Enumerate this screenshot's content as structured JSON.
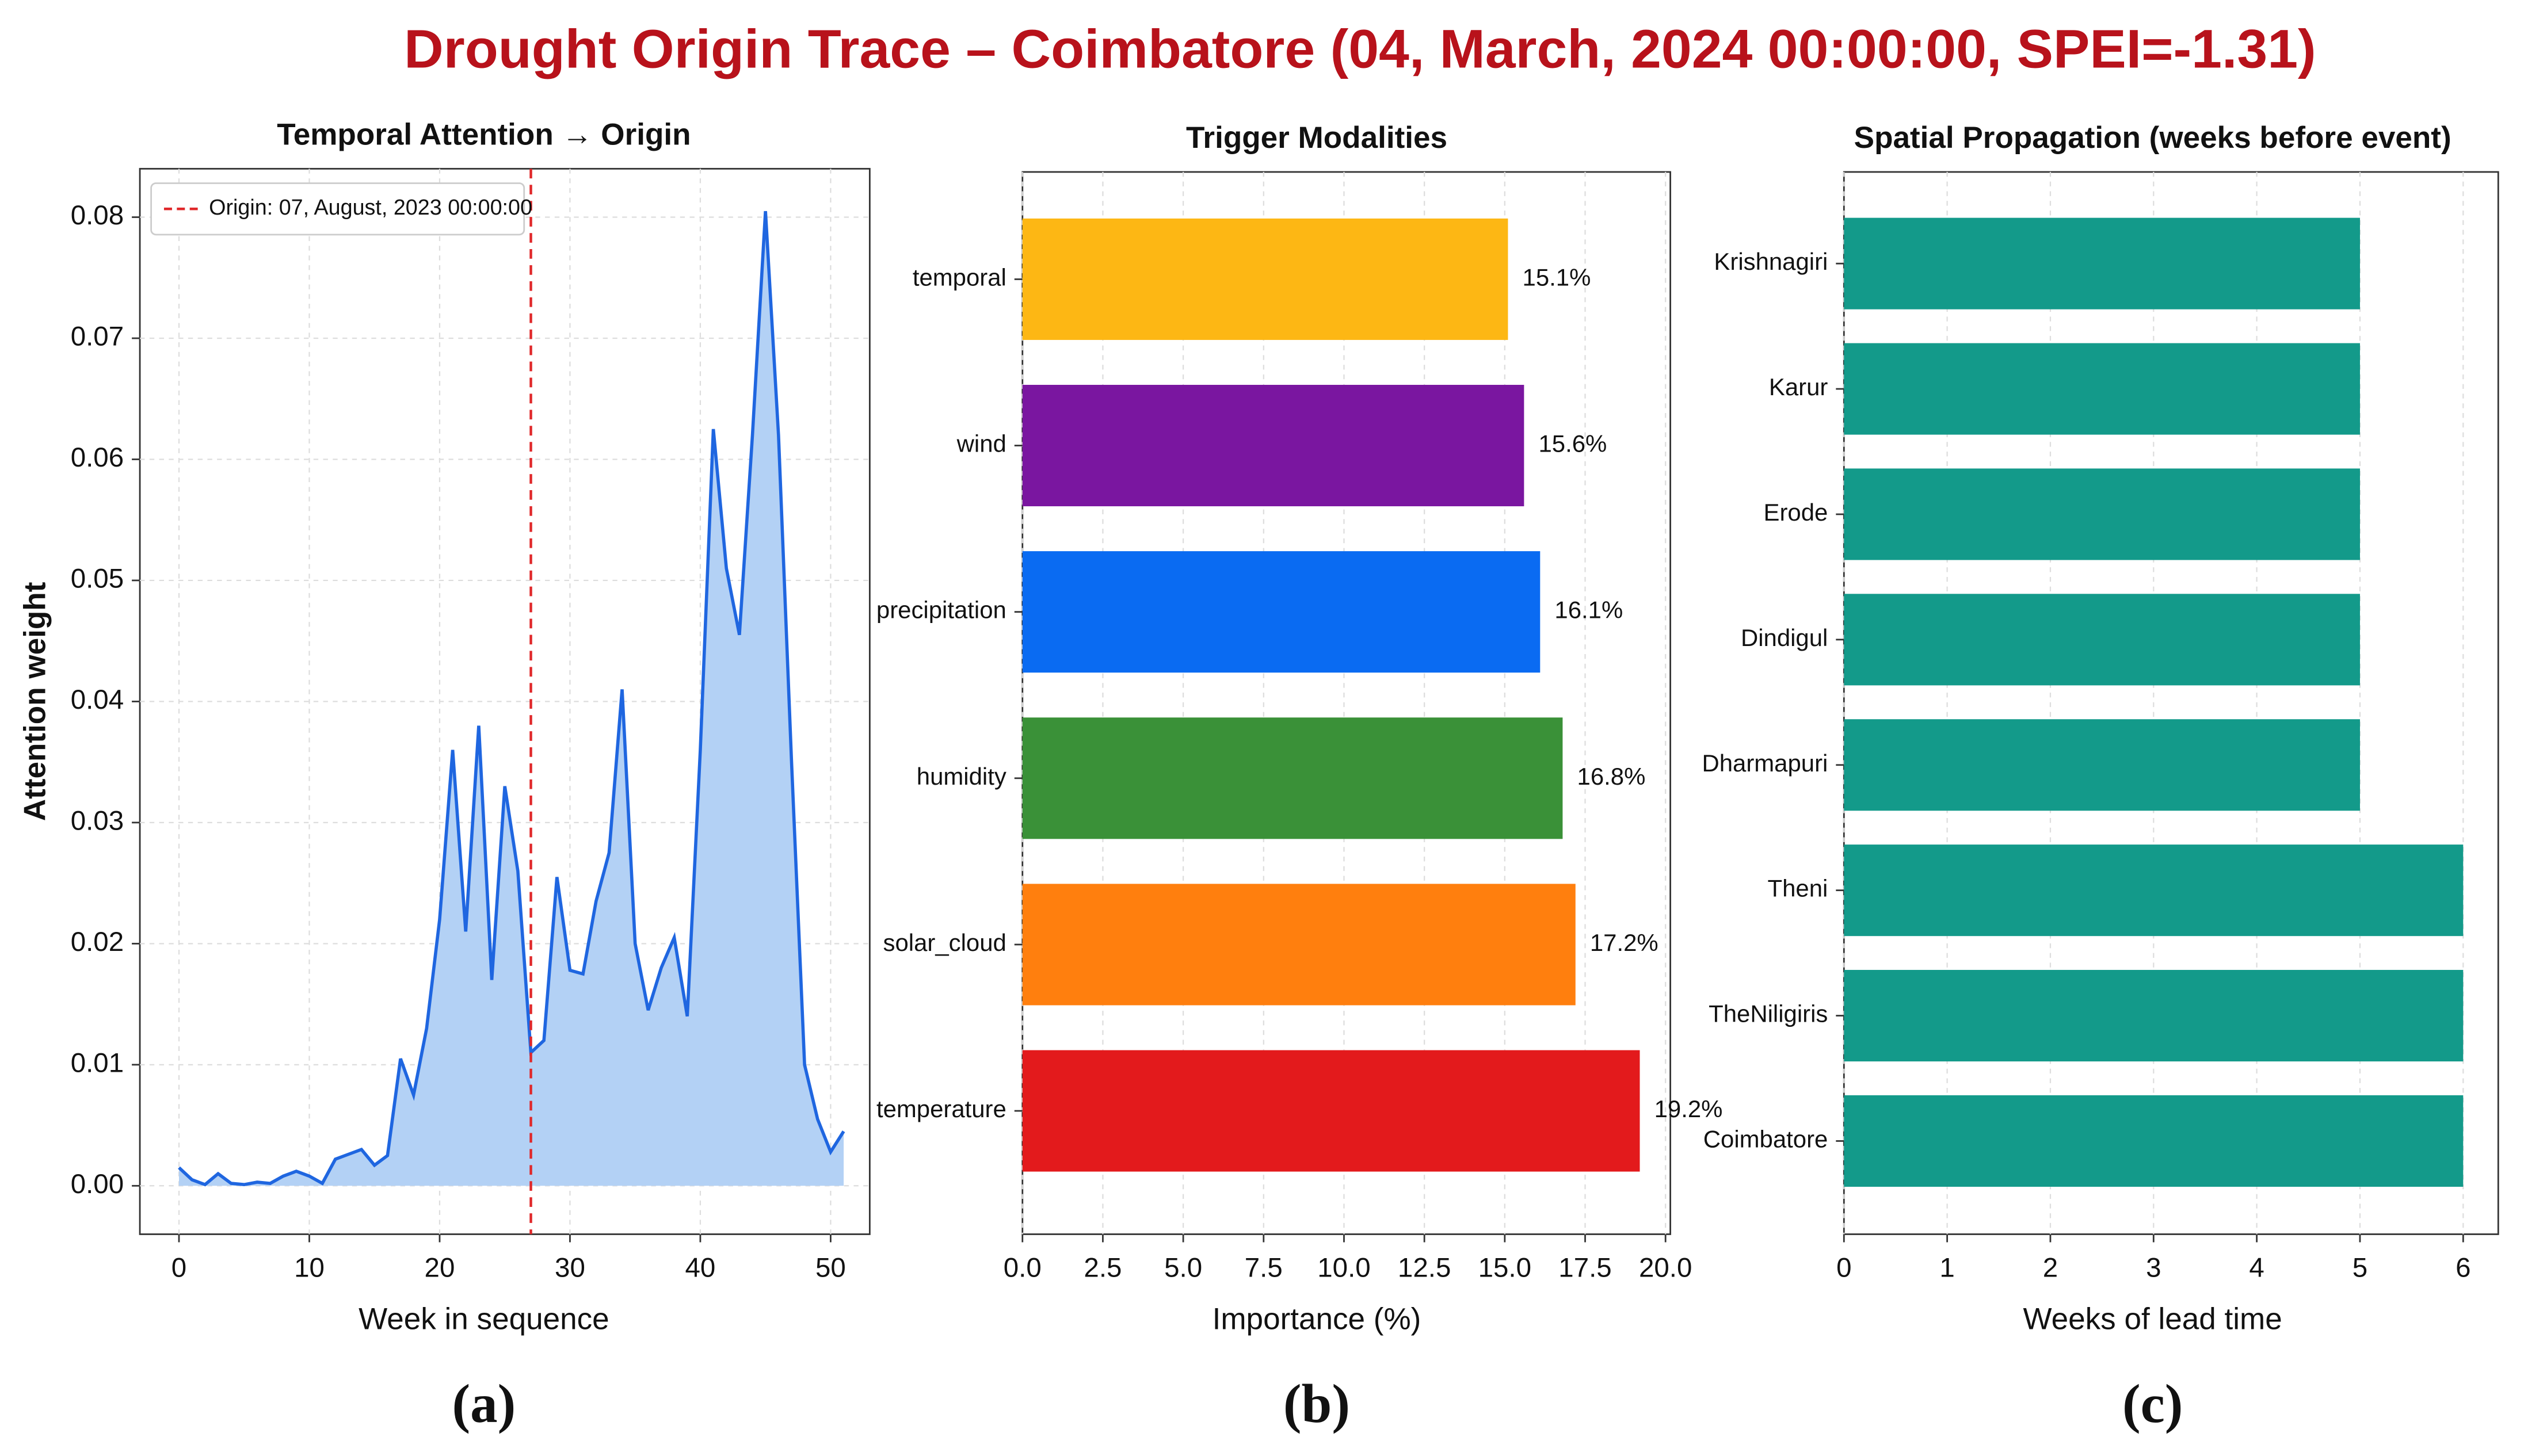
{
  "title": "Drought Origin Trace – Coimbatore (04, March, 2024 00:00:00, SPEI=-1.31)",
  "chart_data": [
    {
      "type": "line",
      "title": "Temporal Attention → Origin",
      "panel_label": "(a)",
      "xlabel": "Week in sequence",
      "ylabel": "Attention weight",
      "x": [
        0,
        1,
        2,
        3,
        4,
        5,
        6,
        7,
        8,
        9,
        10,
        11,
        12,
        13,
        14,
        15,
        16,
        17,
        18,
        19,
        20,
        21,
        22,
        23,
        24,
        25,
        26,
        27,
        28,
        29,
        30,
        31,
        32,
        33,
        34,
        35,
        36,
        37,
        38,
        39,
        40,
        41,
        42,
        43,
        44,
        45,
        46,
        47,
        48,
        49,
        50,
        51
      ],
      "series": [
        {
          "name": "Attention weight",
          "color": "#1f66e0",
          "fill": "#b3d1f5",
          "values": [
            0.0015,
            0.0005,
            0.0001,
            0.001,
            0.0002,
            0.0001,
            0.0003,
            0.0002,
            0.0008,
            0.0012,
            0.0008,
            0.0002,
            0.0022,
            0.0026,
            0.003,
            0.0017,
            0.0025,
            0.0105,
            0.0075,
            0.013,
            0.022,
            0.036,
            0.021,
            0.038,
            0.017,
            0.033,
            0.026,
            0.011,
            0.012,
            0.0255,
            0.0178,
            0.0175,
            0.0235,
            0.0275,
            0.041,
            0.02,
            0.0145,
            0.018,
            0.0205,
            0.014,
            0.036,
            0.0625,
            0.051,
            0.0455,
            0.062,
            0.0805,
            0.062,
            0.035,
            0.01,
            0.0055,
            0.0028,
            0.0045
          ]
        }
      ],
      "vline": {
        "x": 27,
        "label": "Origin: 07, August, 2023 00:00:00",
        "color": "#e0282a"
      },
      "xlim": [
        -3,
        53
      ],
      "xticks": [
        0,
        10,
        20,
        30,
        40,
        50
      ],
      "ylim": [
        -0.004,
        0.084
      ],
      "yticks": [
        {
          "value": 0,
          "label": "0.00"
        },
        {
          "value": 0.01,
          "label": "0.01"
        },
        {
          "value": 0.02,
          "label": "0.02"
        },
        {
          "value": 0.03,
          "label": "0.03"
        },
        {
          "value": 0.04,
          "label": "0.04"
        },
        {
          "value": 0.05,
          "label": "0.05"
        },
        {
          "value": 0.06,
          "label": "0.06"
        },
        {
          "value": 0.07,
          "label": "0.07"
        },
        {
          "value": 0.08,
          "label": "0.08"
        }
      ],
      "grid": true,
      "legend": "upper left"
    },
    {
      "type": "barh",
      "title": "Trigger Modalities",
      "panel_label": "(b)",
      "xlabel": "Importance (%)",
      "categories": [
        "temporal",
        "wind",
        "precipitation",
        "humidity",
        "solar_cloud",
        "temperature"
      ],
      "values": [
        15.1,
        15.6,
        16.1,
        16.8,
        17.2,
        19.2
      ],
      "value_labels": [
        "15.1%",
        "15.6%",
        "16.1%",
        "16.8%",
        "17.2%",
        "19.2%"
      ],
      "colors": [
        "#fdb714",
        "#7a16a0",
        "#0a6bf2",
        "#3a9138",
        "#ff7f0e",
        "#e31a1c"
      ],
      "xlim": [
        0,
        20.15
      ],
      "xticks": [
        {
          "value": 0,
          "label": "0.0"
        },
        {
          "value": 2.5,
          "label": "2.5"
        },
        {
          "value": 5,
          "label": "5.0"
        },
        {
          "value": 7.5,
          "label": "7.5"
        },
        {
          "value": 10,
          "label": "10.0"
        },
        {
          "value": 12.5,
          "label": "12.5"
        },
        {
          "value": 15,
          "label": "15.0"
        },
        {
          "value": 17.5,
          "label": "17.5"
        },
        {
          "value": 20,
          "label": "20.0"
        }
      ],
      "grid": true
    },
    {
      "type": "barh",
      "title": "Spatial Propagation (weeks before event)",
      "panel_label": "(c)",
      "xlabel": "Weeks of lead time",
      "categories": [
        "Krishnagiri",
        "Karur",
        "Erode",
        "Dindigul",
        "Dharmapuri",
        "Theni",
        "TheNiligiris",
        "Coimbatore"
      ],
      "values": [
        5,
        5,
        5,
        5,
        5,
        6,
        6,
        6
      ],
      "color": "#139a8a",
      "xlim": [
        0,
        6.34
      ],
      "xticks": [
        0,
        1,
        2,
        3,
        4,
        5,
        6
      ],
      "grid": true
    }
  ]
}
